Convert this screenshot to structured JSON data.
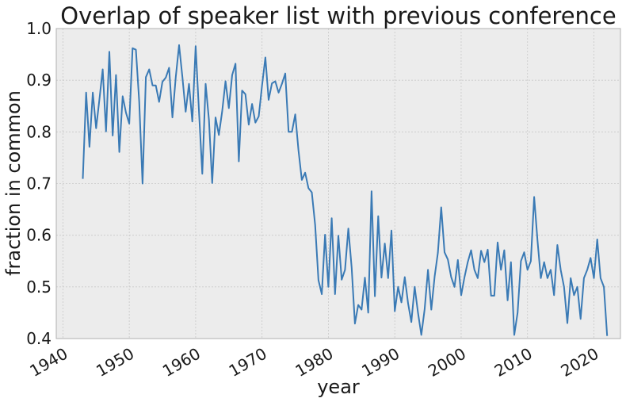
{
  "chart_data": {
    "type": "line",
    "title": "Overlap of speaker list with previous conference",
    "xlabel": "year",
    "ylabel": "fraction in common",
    "xlim": [
      1939,
      2024
    ],
    "ylim": [
      0.4,
      1.0
    ],
    "x_ticks": [
      1940,
      1950,
      1960,
      1970,
      1980,
      1990,
      2000,
      2010,
      2020
    ],
    "x_tick_labels": [
      "1940",
      "1950",
      "1960",
      "1970",
      "1980",
      "1990",
      "2000",
      "2010",
      "2020"
    ],
    "y_ticks": [
      0.4,
      0.5,
      0.6,
      0.7,
      0.8,
      0.9,
      1.0
    ],
    "y_tick_labels": [
      "0.4",
      "0.5",
      "0.6",
      "0.7",
      "0.8",
      "0.9",
      "1.0"
    ],
    "grid": true,
    "legend": "none",
    "colors": {
      "line": "#3a7ab5",
      "plot_bg": "#ececec",
      "grid": "#c8c8c8",
      "frame": "#b0b0b0"
    },
    "series": [
      {
        "x": [
          1943.0,
          1943.5,
          1944.0,
          1944.5,
          1945.0,
          1945.5,
          1946.0,
          1946.5,
          1947.0,
          1947.5,
          1948.0,
          1948.5,
          1949.0,
          1949.5,
          1950.0,
          1950.5,
          1951.0,
          1951.5,
          1952.0,
          1952.5,
          1953.0,
          1953.5,
          1954.0,
          1954.5,
          1955.0,
          1955.5,
          1956.0,
          1956.5,
          1957.0,
          1957.5,
          1958.0,
          1958.5,
          1959.0,
          1959.5,
          1960.0,
          1960.5,
          1961.0,
          1961.5,
          1962.0,
          1962.5,
          1963.0,
          1963.5,
          1964.0,
          1964.5,
          1965.0,
          1965.5,
          1966.0,
          1966.5,
          1967.0,
          1967.5,
          1968.0,
          1968.5,
          1969.0,
          1969.5,
          1970.0,
          1970.5,
          1971.0,
          1971.5,
          1972.0,
          1972.5,
          1973.0,
          1973.5,
          1974.0,
          1974.5,
          1975.0,
          1975.5,
          1976.0,
          1976.5,
          1977.0,
          1977.5,
          1978.0,
          1978.5,
          1979.0,
          1979.5,
          1980.0,
          1980.5,
          1981.0,
          1981.5,
          1982.0,
          1982.5,
          1983.0,
          1983.5,
          1984.0,
          1984.5,
          1985.0,
          1985.5,
          1986.0,
          1986.5,
          1987.0,
          1987.5,
          1988.0,
          1988.5,
          1989.0,
          1989.5,
          1990.0,
          1990.5,
          1991.0,
          1991.5,
          1992.0,
          1992.5,
          1993.0,
          1993.5,
          1994.0,
          1994.5,
          1995.0,
          1995.5,
          1996.0,
          1996.5,
          1997.0,
          1997.5,
          1998.0,
          1998.5,
          1999.0,
          1999.5,
          2000.0,
          2000.5,
          2001.0,
          2001.5,
          2002.0,
          2002.5,
          2003.0,
          2003.5,
          2004.0,
          2004.5,
          2005.0,
          2005.5,
          2006.0,
          2006.5,
          2007.0,
          2007.5,
          2008.0,
          2008.5,
          2009.0,
          2009.5,
          2010.0,
          2010.5,
          2011.0,
          2011.5,
          2012.0,
          2012.5,
          2013.0,
          2013.5,
          2014.0,
          2014.5,
          2015.0,
          2015.5,
          2016.0,
          2016.5,
          2017.0,
          2017.5,
          2018.0,
          2018.5,
          2019.0,
          2019.5,
          2020.0,
          2020.5,
          2021.0,
          2021.5,
          2022.0
        ],
        "values": [
          0.709,
          0.876,
          0.771,
          0.876,
          0.807,
          0.862,
          0.921,
          0.801,
          0.955,
          0.793,
          0.91,
          0.761,
          0.869,
          0.837,
          0.816,
          0.962,
          0.959,
          0.858,
          0.7,
          0.906,
          0.921,
          0.89,
          0.89,
          0.858,
          0.897,
          0.905,
          0.924,
          0.828,
          0.906,
          0.968,
          0.906,
          0.839,
          0.893,
          0.82,
          0.966,
          0.84,
          0.719,
          0.893,
          0.823,
          0.701,
          0.828,
          0.794,
          0.84,
          0.898,
          0.846,
          0.91,
          0.932,
          0.743,
          0.88,
          0.873,
          0.814,
          0.854,
          0.818,
          0.83,
          0.89,
          0.944,
          0.862,
          0.894,
          0.898,
          0.876,
          0.893,
          0.913,
          0.8,
          0.8,
          0.834,
          0.764,
          0.707,
          0.721,
          0.691,
          0.683,
          0.62,
          0.513,
          0.486,
          0.601,
          0.5,
          0.633,
          0.486,
          0.599,
          0.514,
          0.533,
          0.613,
          0.537,
          0.429,
          0.465,
          0.456,
          0.518,
          0.45,
          0.685,
          0.482,
          0.637,
          0.518,
          0.584,
          0.517,
          0.609,
          0.453,
          0.5,
          0.47,
          0.519,
          0.468,
          0.432,
          0.5,
          0.45,
          0.407,
          0.457,
          0.533,
          0.456,
          0.52,
          0.566,
          0.654,
          0.567,
          0.553,
          0.519,
          0.5,
          0.552,
          0.484,
          0.519,
          0.548,
          0.571,
          0.533,
          0.517,
          0.57,
          0.548,
          0.572,
          0.483,
          0.483,
          0.586,
          0.533,
          0.571,
          0.474,
          0.548,
          0.407,
          0.45,
          0.55,
          0.567,
          0.533,
          0.55,
          0.674,
          0.59,
          0.517,
          0.548,
          0.517,
          0.533,
          0.484,
          0.581,
          0.533,
          0.5,
          0.43,
          0.517,
          0.484,
          0.5,
          0.438,
          0.517,
          0.533,
          0.556,
          0.517,
          0.592,
          0.517,
          0.5,
          0.405
        ]
      }
    ]
  }
}
